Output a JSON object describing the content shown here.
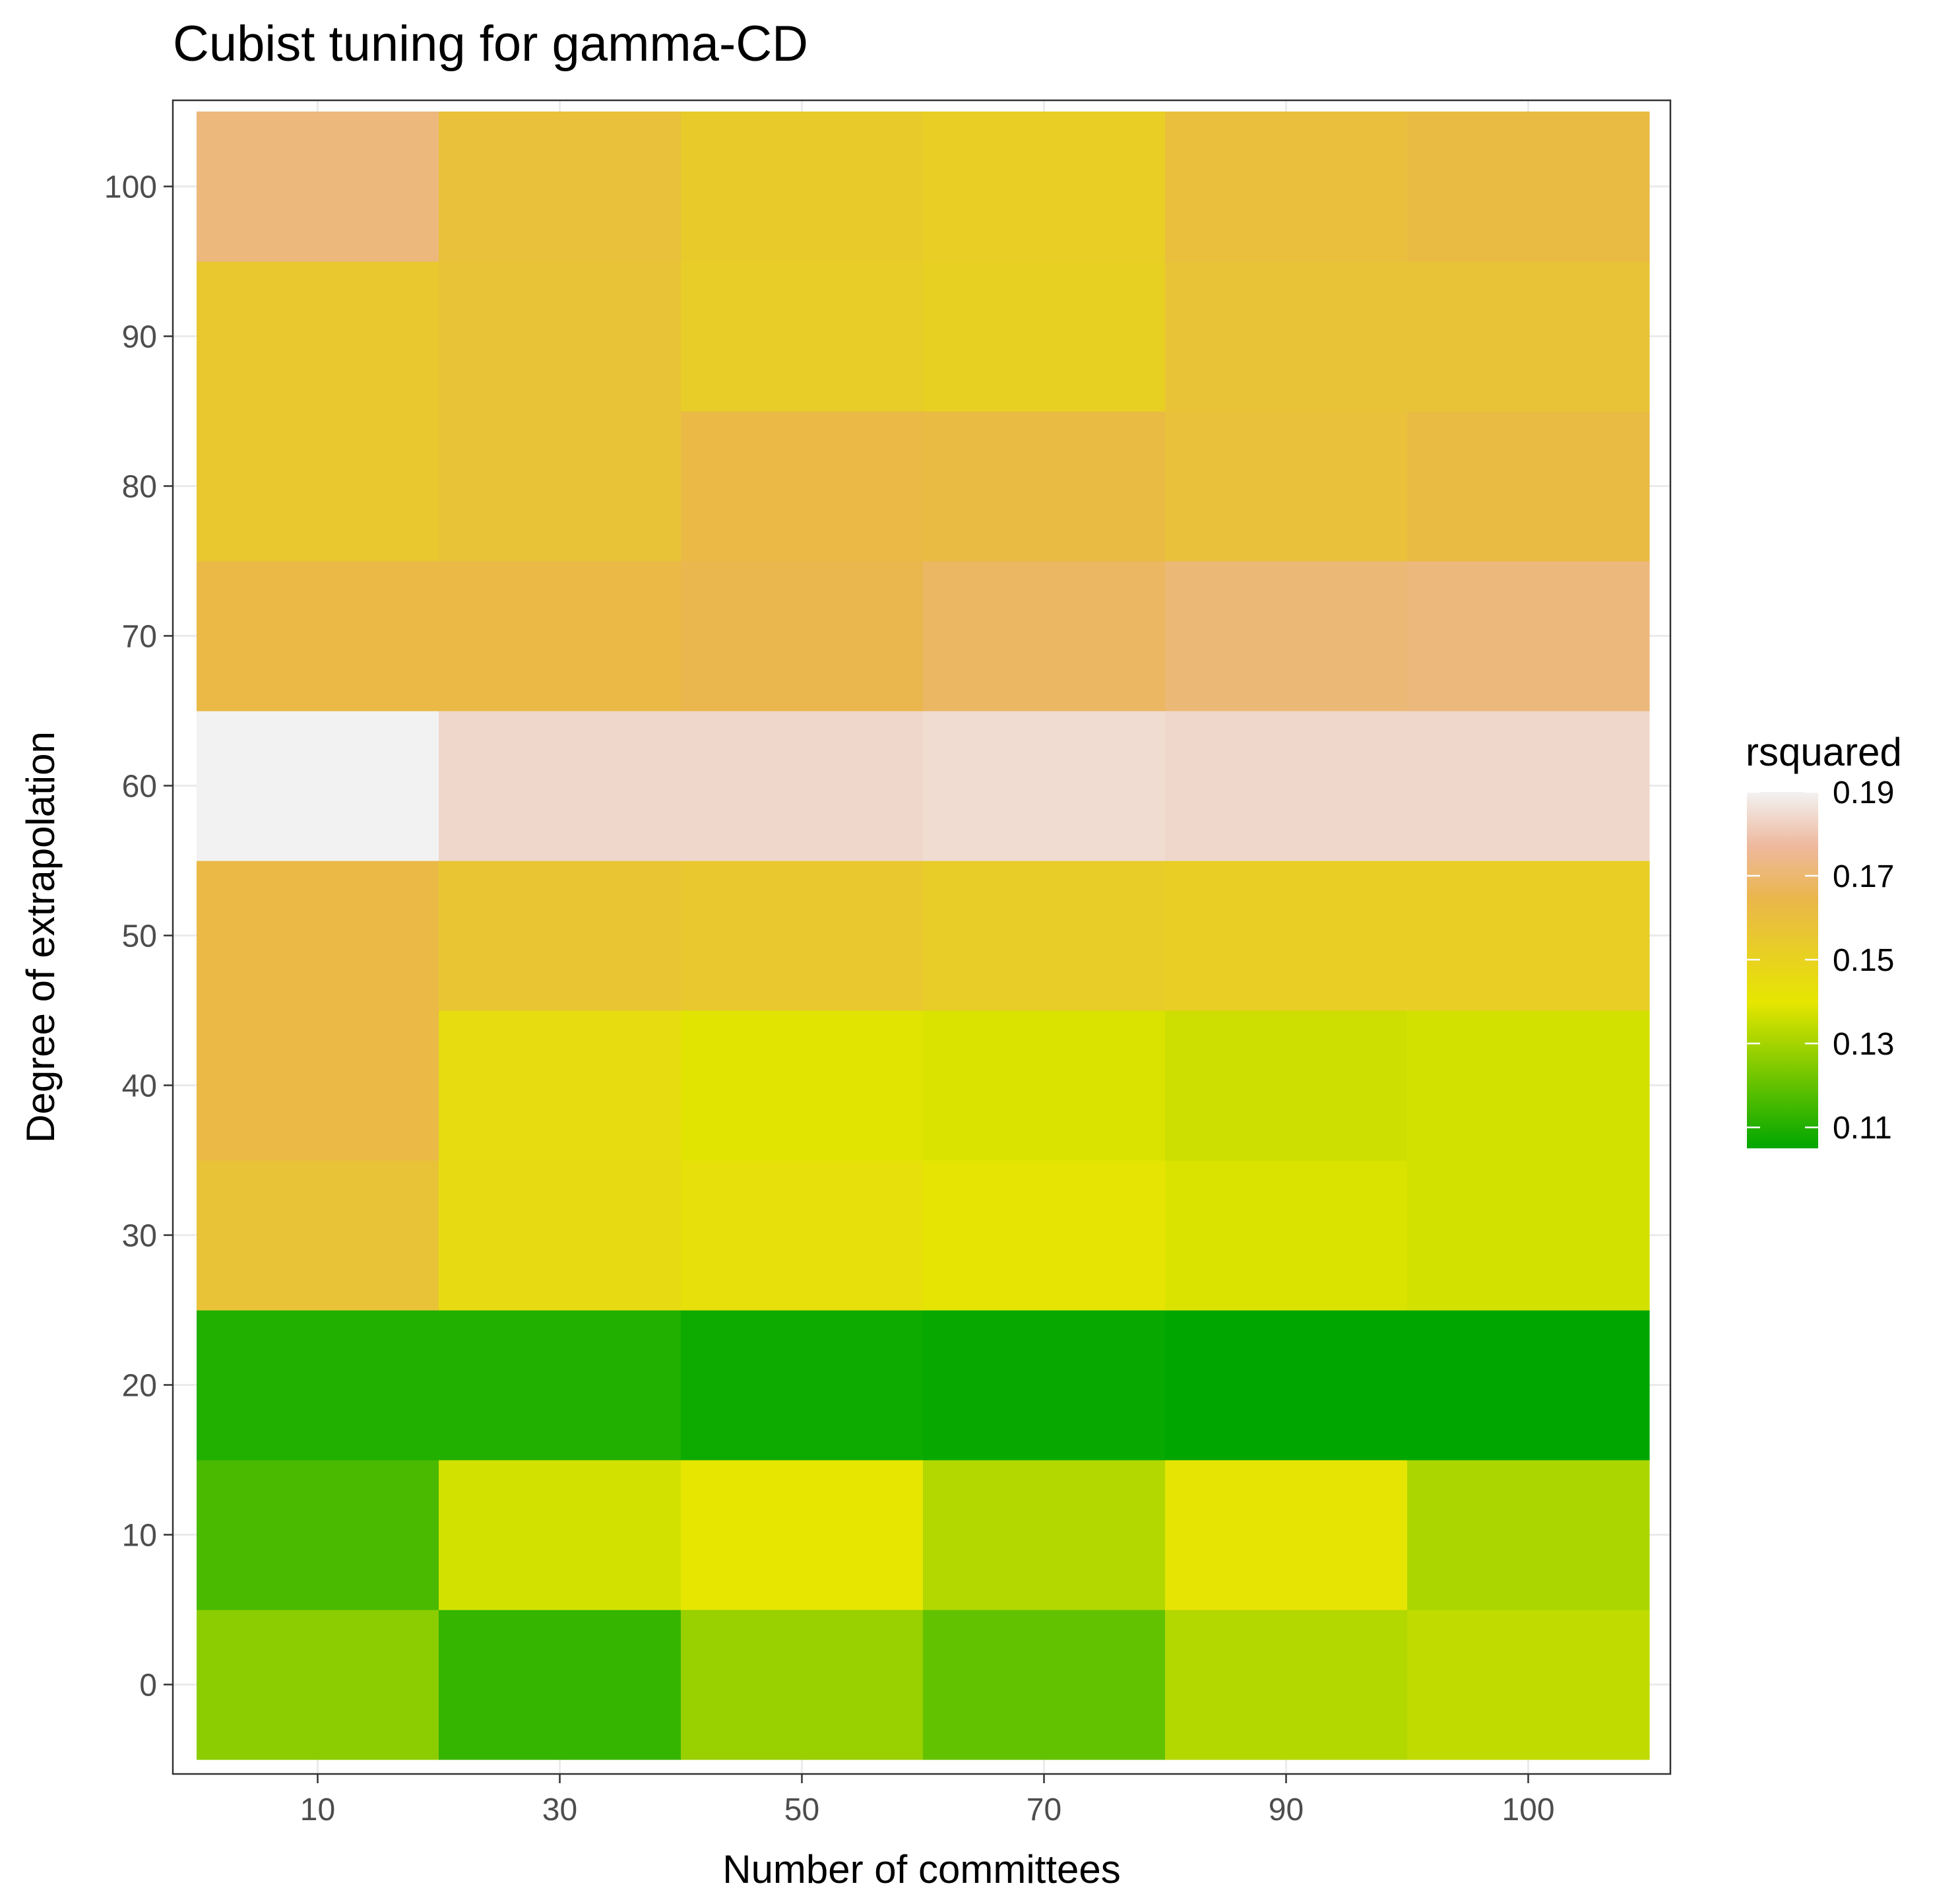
{
  "chart_data": {
    "type": "heatmap",
    "title": "Cubist tuning for gamma-CD",
    "xlabel": "Number of committees",
    "ylabel": "Degree of extrapolation",
    "x_categories": [
      "10",
      "30",
      "50",
      "70",
      "90",
      "100"
    ],
    "y_categories": [
      "0",
      "10",
      "20",
      "30",
      "40",
      "50",
      "60",
      "70",
      "80",
      "90",
      "100"
    ],
    "grid": true,
    "legend": {
      "title": "rsquared",
      "position": "right",
      "ticks": [
        "0.11",
        "0.13",
        "0.15",
        "0.17",
        "0.19"
      ],
      "min": 0.105,
      "max": 0.19,
      "gradient_colors": [
        "#00a600",
        "#e6e600",
        "#eab64b",
        "#eeb99f",
        "#f2f2f2"
      ]
    },
    "values": [
      [
        0.126,
        0.113,
        0.128,
        0.12,
        0.132,
        0.134
      ],
      [
        0.116,
        0.137,
        0.14,
        0.132,
        0.141,
        0.131
      ],
      [
        0.11,
        0.11,
        0.107,
        0.106,
        0.105,
        0.105
      ],
      [
        0.158,
        0.146,
        0.143,
        0.141,
        0.138,
        0.137
      ],
      [
        0.163,
        0.145,
        0.139,
        0.138,
        0.136,
        0.137
      ],
      [
        0.163,
        0.157,
        0.155,
        0.153,
        0.152,
        0.152
      ],
      [
        0.19,
        0.184,
        0.184,
        0.185,
        0.184,
        0.184
      ],
      [
        0.163,
        0.163,
        0.165,
        0.168,
        0.171,
        0.172
      ],
      [
        0.155,
        0.158,
        0.163,
        0.162,
        0.159,
        0.162
      ],
      [
        0.155,
        0.158,
        0.153,
        0.151,
        0.158,
        0.158
      ],
      [
        0.172,
        0.159,
        0.154,
        0.152,
        0.16,
        0.162
      ]
    ]
  }
}
